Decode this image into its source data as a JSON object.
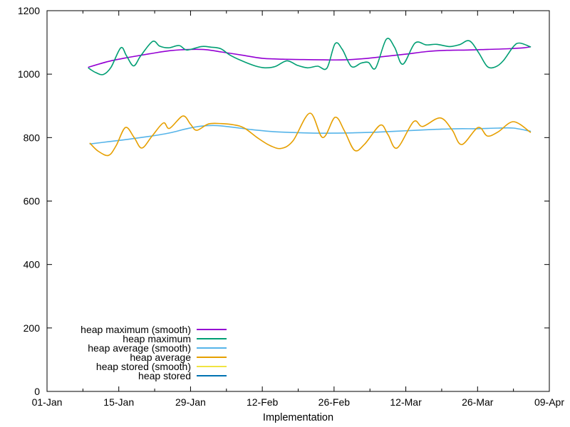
{
  "figure": {
    "background": "#ffffff",
    "axis_color": "#000000",
    "text_color": "#000000"
  },
  "chart_data": {
    "type": "line",
    "title": "",
    "xlabel": "Implementation",
    "ylabel": "",
    "grid": "off",
    "x_axis": {
      "unit": "days since 01-Jan",
      "range_days": [
        0,
        98
      ],
      "tick_labels": [
        "01-Jan",
        "15-Jan",
        "29-Jan",
        "12-Feb",
        "26-Feb",
        "12-Mar",
        "26-Mar",
        "09-Apr"
      ],
      "tick_days": [
        0,
        14,
        28,
        42,
        56,
        70,
        84,
        98
      ],
      "minor_tick_days": [
        7,
        21,
        35,
        49,
        63,
        77,
        91
      ]
    },
    "y_axis": {
      "range": [
        0,
        1200
      ],
      "ticks": [
        0,
        200,
        400,
        600,
        800,
        1000,
        1200
      ]
    },
    "legend": {
      "position": "inside-bottom-left",
      "entries": [
        {
          "label": "heap maximum (smooth)",
          "color": "#9400d3"
        },
        {
          "label": "heap maximum",
          "color": "#009e73"
        },
        {
          "label": "heap average (smooth)",
          "color": "#56b4e9"
        },
        {
          "label": "heap average",
          "color": "#e69f00"
        },
        {
          "label": "heap stored (smooth)",
          "color": "#f0e442"
        },
        {
          "label": "heap stored",
          "color": "#0072b2"
        }
      ]
    },
    "series": [
      {
        "name": "heap maximum (smooth)",
        "color": "#9400d3",
        "points": [
          [
            8.1,
            1022
          ],
          [
            12,
            1040
          ],
          [
            16,
            1053
          ],
          [
            20,
            1064
          ],
          [
            24,
            1074
          ],
          [
            28,
            1078
          ],
          [
            31,
            1077
          ],
          [
            34,
            1070
          ],
          [
            38,
            1060
          ],
          [
            42,
            1050
          ],
          [
            46,
            1047
          ],
          [
            50,
            1046
          ],
          [
            54,
            1045
          ],
          [
            58,
            1045
          ],
          [
            62,
            1049
          ],
          [
            66,
            1056
          ],
          [
            70,
            1063
          ],
          [
            74,
            1071
          ],
          [
            78,
            1075
          ],
          [
            82,
            1076
          ],
          [
            86,
            1078
          ],
          [
            90,
            1080
          ],
          [
            93,
            1083
          ],
          [
            94.3,
            1086
          ]
        ]
      },
      {
        "name": "heap maximum",
        "color": "#009e73",
        "points": [
          [
            8.1,
            1019
          ],
          [
            9.5,
            1005
          ],
          [
            11,
            999
          ],
          [
            12.5,
            1022
          ],
          [
            14.4,
            1083
          ],
          [
            15.5,
            1058
          ],
          [
            16.9,
            1026
          ],
          [
            18.3,
            1058
          ],
          [
            20.6,
            1103
          ],
          [
            22,
            1088
          ],
          [
            23.7,
            1083
          ],
          [
            25.8,
            1090
          ],
          [
            27.3,
            1076
          ],
          [
            30.1,
            1087
          ],
          [
            32,
            1085
          ],
          [
            33.9,
            1080
          ],
          [
            35.7,
            1060
          ],
          [
            38,
            1042
          ],
          [
            40.6,
            1026
          ],
          [
            42.5,
            1020
          ],
          [
            44.5,
            1024
          ],
          [
            46.8,
            1042
          ],
          [
            48.8,
            1028
          ],
          [
            50.8,
            1020
          ],
          [
            52.8,
            1025
          ],
          [
            54.6,
            1019
          ],
          [
            56.2,
            1096
          ],
          [
            57.6,
            1078
          ],
          [
            59.4,
            1024
          ],
          [
            61.3,
            1035
          ],
          [
            62.7,
            1037
          ],
          [
            64.1,
            1019
          ],
          [
            66.2,
            1110
          ],
          [
            67.8,
            1085
          ],
          [
            69.4,
            1031
          ],
          [
            71.8,
            1098
          ],
          [
            74,
            1092
          ],
          [
            76,
            1094
          ],
          [
            78.5,
            1087
          ],
          [
            80.5,
            1093
          ],
          [
            82.4,
            1105
          ],
          [
            84.2,
            1068
          ],
          [
            85.9,
            1024
          ],
          [
            87.5,
            1023
          ],
          [
            89,
            1042
          ],
          [
            91,
            1087
          ],
          [
            92.2,
            1098
          ],
          [
            94.3,
            1086
          ]
        ]
      },
      {
        "name": "heap average (smooth)",
        "color": "#56b4e9",
        "points": [
          [
            8.4,
            780
          ],
          [
            12,
            787
          ],
          [
            16,
            795
          ],
          [
            20,
            804
          ],
          [
            24,
            815
          ],
          [
            27,
            827
          ],
          [
            30,
            836
          ],
          [
            33,
            838
          ],
          [
            36,
            833
          ],
          [
            40,
            825
          ],
          [
            44,
            819
          ],
          [
            48,
            816
          ],
          [
            52,
            814
          ],
          [
            56,
            814
          ],
          [
            60,
            815
          ],
          [
            64,
            817
          ],
          [
            68,
            820
          ],
          [
            72,
            823
          ],
          [
            76,
            826
          ],
          [
            80,
            828
          ],
          [
            84,
            828
          ],
          [
            88,
            830
          ],
          [
            91,
            830
          ],
          [
            94.3,
            820
          ]
        ]
      },
      {
        "name": "heap average",
        "color": "#e69f00",
        "points": [
          [
            8.4,
            782
          ],
          [
            10,
            757
          ],
          [
            12,
            744
          ],
          [
            13.5,
            775
          ],
          [
            15.3,
            832
          ],
          [
            17,
            800
          ],
          [
            18.5,
            767
          ],
          [
            20.5,
            805
          ],
          [
            22.7,
            846
          ],
          [
            23.9,
            829
          ],
          [
            26.5,
            868
          ],
          [
            28,
            842
          ],
          [
            29.2,
            823
          ],
          [
            31.5,
            843
          ],
          [
            34,
            844
          ],
          [
            36.5,
            840
          ],
          [
            38.5,
            830
          ],
          [
            41,
            800
          ],
          [
            43.5,
            775
          ],
          [
            45.7,
            766
          ],
          [
            48,
            790
          ],
          [
            51.3,
            877
          ],
          [
            53.8,
            800
          ],
          [
            56.2,
            864
          ],
          [
            58,
            822
          ],
          [
            60,
            760
          ],
          [
            62,
            780
          ],
          [
            65,
            839
          ],
          [
            66.5,
            810
          ],
          [
            68.3,
            767
          ],
          [
            71.5,
            850
          ],
          [
            73.3,
            835
          ],
          [
            76.7,
            862
          ],
          [
            79,
            825
          ],
          [
            80.9,
            778
          ],
          [
            84.1,
            832
          ],
          [
            85.9,
            805
          ],
          [
            88,
            818
          ],
          [
            91,
            850
          ],
          [
            94.3,
            817
          ]
        ]
      }
    ],
    "notes": "heap stored and heap stored (smooth) appear in the legend only; no distinct line is visible in the plot area"
  }
}
